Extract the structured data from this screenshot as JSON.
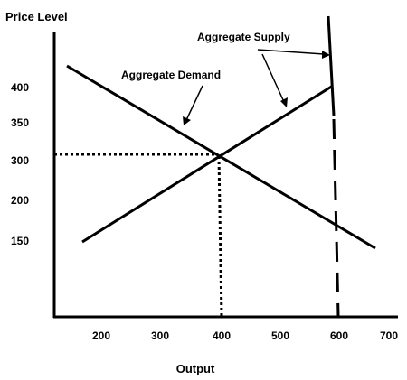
{
  "chart_data": {
    "type": "line",
    "title": "",
    "xlabel": "Output",
    "ylabel": "Price Level",
    "x_ticks": [
      "200",
      "300",
      "400",
      "500",
      "600",
      "700"
    ],
    "y_ticks": [
      "150",
      "200",
      "300",
      "350",
      "400"
    ],
    "series": [
      {
        "name": "Aggregate Demand",
        "x": [
          140,
          675
        ],
        "y": [
          425,
          135
        ]
      },
      {
        "name": "Aggregate Supply",
        "x": [
          170,
          590
        ],
        "y": [
          145,
          400
        ]
      },
      {
        "name": "Aggregate Supply",
        "x": [
          588,
          600
        ],
        "y": [
          500,
          40
        ],
        "style": "solid-then-dashed"
      }
    ],
    "equilibrium": {
      "x": 400,
      "y": 305
    },
    "annotations": [
      {
        "text": "Aggregate Demand"
      },
      {
        "text": "Aggregate Supply"
      }
    ],
    "grid": false,
    "legend": "none",
    "colors": {
      "line": "#000000"
    }
  }
}
